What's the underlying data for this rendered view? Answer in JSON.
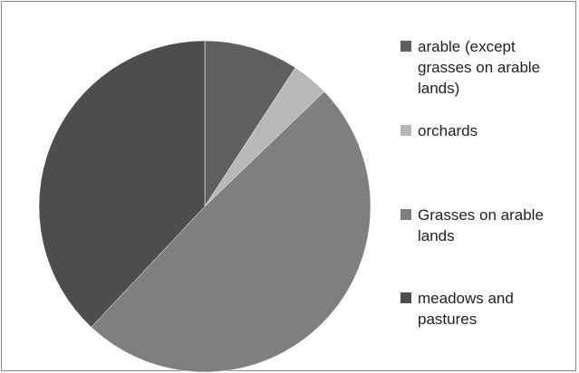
{
  "chart_data": {
    "type": "pie",
    "title": "",
    "start_angle_deg": 0,
    "direction": "clockwise",
    "slices": [
      {
        "label": "arable (except grasses on arable lands)",
        "value": 9.2,
        "color": "#5f5f5f"
      },
      {
        "label": "orchards",
        "value": 3.6,
        "color": "#b8b8b8"
      },
      {
        "label": "Grasses on arable lands",
        "value": 49.2,
        "color": "#7f7f7f"
      },
      {
        "label": "meadows and pastures",
        "value": 38.0,
        "color": "#4d4d4d"
      }
    ],
    "legend": {
      "placement": "right",
      "entries": [
        "arable (except\ngrasses on arable\nlands)",
        "orchards",
        "Grasses on arable\nlands",
        "meadows and\npastures"
      ]
    }
  }
}
